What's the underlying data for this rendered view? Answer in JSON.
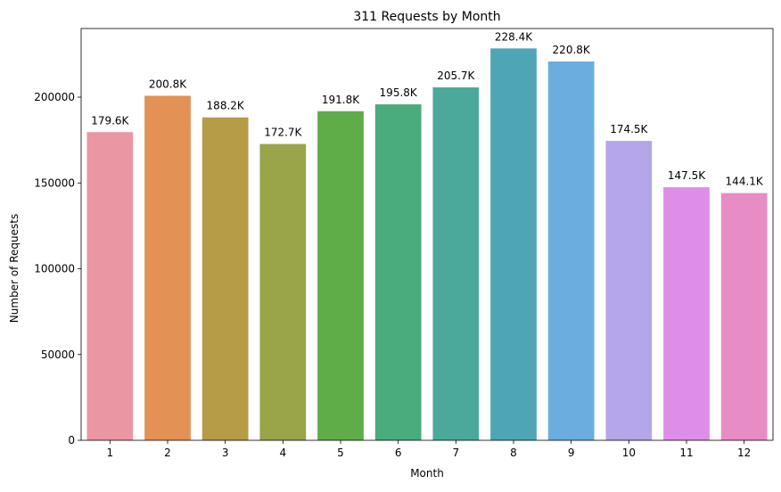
{
  "chart_data": {
    "type": "bar",
    "title": "311 Requests by Month",
    "xlabel": "Month",
    "ylabel": "Number of Requests",
    "categories": [
      "1",
      "2",
      "3",
      "4",
      "5",
      "6",
      "7",
      "8",
      "9",
      "10",
      "11",
      "12"
    ],
    "values": [
      179600,
      200800,
      188200,
      172700,
      191800,
      195800,
      205700,
      228400,
      220800,
      174500,
      147500,
      144100
    ],
    "data_labels": [
      "179.6K",
      "200.8K",
      "188.2K",
      "172.7K",
      "191.8K",
      "195.8K",
      "205.7K",
      "228.4K",
      "220.8K",
      "174.5K",
      "147.5K",
      "144.1K"
    ],
    "colors": [
      "#ea96a3",
      "#e39154",
      "#b69c47",
      "#9aa448",
      "#5ead48",
      "#4aab7c",
      "#4ba99b",
      "#4ea6b5",
      "#6badde",
      "#b4a6e8",
      "#df8ee7",
      "#e78cc4"
    ],
    "yticks": [
      "0",
      "50000",
      "100000",
      "150000",
      "200000"
    ],
    "ylim": [
      0,
      240000
    ],
    "grid": false,
    "legend": "none"
  }
}
